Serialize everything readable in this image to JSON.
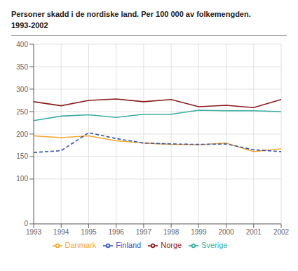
{
  "chart_data": {
    "type": "line",
    "title": "Personer skadd i de nordiske land. Per 100 000 av folkemengden.",
    "subtitle": "1993-2002",
    "categories": [
      "1993",
      "1994",
      "1995",
      "1996",
      "1997",
      "1998",
      "1999",
      "2000",
      "2001",
      "2002"
    ],
    "series": [
      {
        "name": "Danmark",
        "color": "#f0a830",
        "line_style": "solid",
        "values": [
          196,
          192,
          196,
          185,
          180,
          177,
          176,
          180,
          161,
          167
        ]
      },
      {
        "name": "Finland",
        "color": "#3355bb",
        "line_style": "dashed",
        "values": [
          159,
          163,
          203,
          190,
          180,
          178,
          177,
          178,
          165,
          161
        ]
      },
      {
        "name": "Norge",
        "color": "#8b1a1a",
        "line_style": "solid",
        "values": [
          272,
          263,
          275,
          278,
          272,
          277,
          261,
          264,
          259,
          277
        ]
      },
      {
        "name": "Sverige",
        "color": "#3aada0",
        "line_style": "solid",
        "values": [
          230,
          240,
          243,
          237,
          244,
          244,
          253,
          252,
          252,
          250
        ]
      }
    ],
    "ylim": [
      0,
      400
    ],
    "yticks": [
      0,
      100,
      150,
      200,
      250,
      300,
      350,
      400
    ],
    "grid": true,
    "legend": "bottom"
  }
}
